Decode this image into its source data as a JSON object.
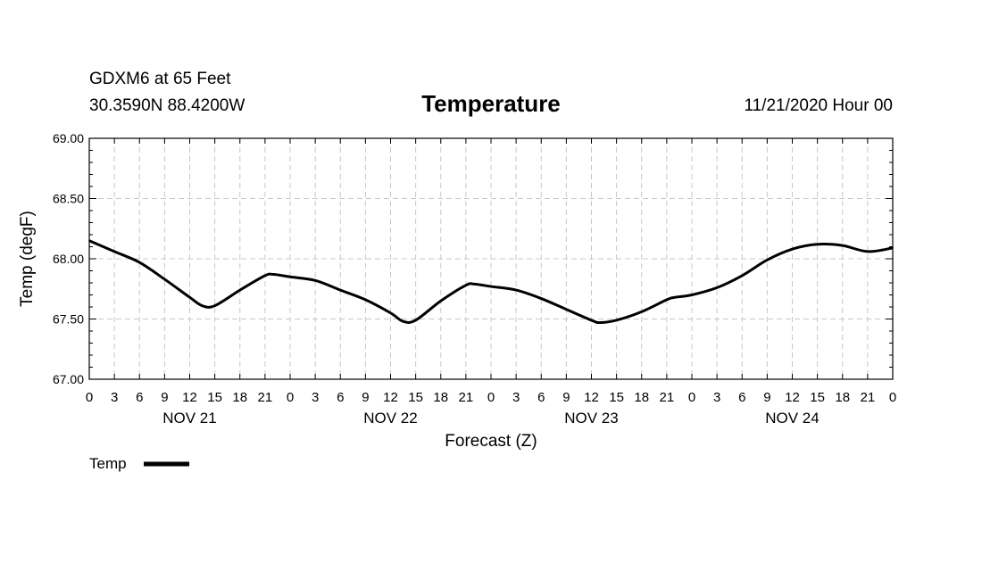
{
  "header": {
    "station": "GDXM6 at 65 Feet",
    "coords": "30.3590N 88.4200W",
    "title": "Temperature",
    "datetime": "11/21/2020 Hour 00"
  },
  "chart_data": {
    "type": "line",
    "title": "Temperature",
    "xlabel": "Forecast (Z)",
    "ylabel": "Temp (degF)",
    "ylim": [
      67.0,
      69.0
    ],
    "xlim": [
      0,
      96
    ],
    "x_unit": "hours from 11/21/2020 00Z",
    "y_ticks": [
      "67.00",
      "67.50",
      "68.00",
      "68.50",
      "69.00"
    ],
    "x_tick_labels": [
      "0",
      "3",
      "6",
      "9",
      "12",
      "15",
      "18",
      "21",
      "0",
      "3",
      "6",
      "9",
      "12",
      "15",
      "18",
      "21",
      "0",
      "3",
      "6",
      "9",
      "12",
      "15",
      "18",
      "21",
      "0",
      "3",
      "6",
      "9",
      "12",
      "15",
      "18",
      "21",
      "0"
    ],
    "day_labels": [
      {
        "label": "NOV 21",
        "hour": 12
      },
      {
        "label": "NOV 22",
        "hour": 36
      },
      {
        "label": "NOV 23",
        "hour": 60
      },
      {
        "label": "NOV 24",
        "hour": 84
      }
    ],
    "grid": true,
    "series": [
      {
        "name": "Temp",
        "color": "#000000",
        "x": [
          0,
          3,
          6,
          9,
          12,
          13.5,
          15,
          18,
          21,
          22,
          24,
          27,
          30,
          33,
          36,
          37.5,
          39,
          42,
          45,
          46,
          48,
          51,
          54,
          57,
          60,
          61,
          63,
          66,
          69,
          70,
          72,
          75,
          78,
          81,
          84,
          87,
          90,
          93,
          96
        ],
        "values": [
          68.15,
          68.06,
          67.97,
          67.83,
          67.68,
          67.61,
          67.61,
          67.74,
          67.86,
          67.87,
          67.85,
          67.82,
          67.74,
          67.66,
          67.55,
          67.48,
          67.49,
          67.65,
          67.78,
          67.79,
          67.77,
          67.74,
          67.67,
          67.58,
          67.49,
          67.47,
          67.49,
          67.56,
          67.66,
          67.68,
          67.7,
          67.76,
          67.86,
          67.99,
          68.08,
          68.12,
          68.11,
          68.06,
          68.09
        ]
      }
    ],
    "legend": {
      "label": "Temp",
      "position": "bottom-left"
    }
  }
}
